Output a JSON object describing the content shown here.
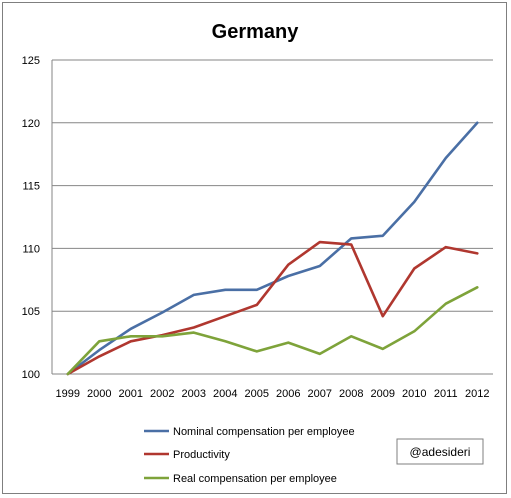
{
  "chart_data": {
    "type": "line",
    "title": "Germany",
    "xlabel": "",
    "ylabel": "",
    "x": [
      "1999",
      "2000",
      "2001",
      "2002",
      "2003",
      "2004",
      "2005",
      "2006",
      "2007",
      "2008",
      "2009",
      "2010",
      "2011",
      "2012"
    ],
    "ylim": [
      100,
      125
    ],
    "yticks": [
      100,
      105,
      110,
      115,
      120,
      125
    ],
    "grid": true,
    "legend_position": "bottom",
    "series": [
      {
        "name": "Nominal compensation per employee",
        "color": "#4a6fa5",
        "values": [
          100,
          101.9,
          103.6,
          104.9,
          106.3,
          106.7,
          106.7,
          107.8,
          108.6,
          110.8,
          111.0,
          113.7,
          117.2,
          120.0
        ]
      },
      {
        "name": "Productivity",
        "color": "#b0372f",
        "values": [
          100,
          101.4,
          102.6,
          103.1,
          103.7,
          104.6,
          105.5,
          108.7,
          110.5,
          110.3,
          104.6,
          108.4,
          110.1,
          109.6
        ]
      },
      {
        "name": "Real compensation per employee",
        "color": "#7ea33a",
        "values": [
          100,
          102.6,
          103.0,
          103.0,
          103.3,
          102.6,
          101.8,
          102.5,
          101.6,
          103.0,
          102.0,
          103.4,
          105.6,
          106.9
        ]
      }
    ],
    "annotation": "@adesideri"
  }
}
